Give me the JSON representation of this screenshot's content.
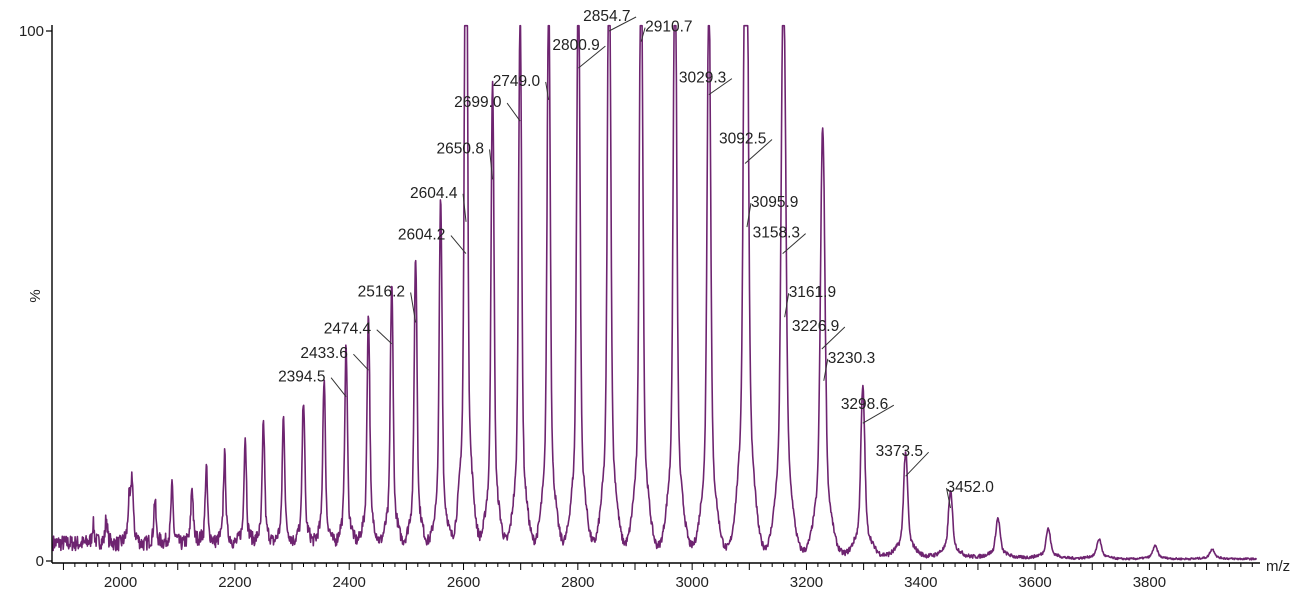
{
  "chart_data": {
    "type": "line",
    "title": "",
    "xlabel": "m/z",
    "ylabel": "%",
    "xlim": [
      1880,
      3990
    ],
    "ylim": [
      0,
      100
    ],
    "x_ticks": [
      2000,
      2200,
      2400,
      2600,
      2800,
      3000,
      3200,
      3400,
      3600,
      3800
    ],
    "y_ticks": [
      0,
      100
    ],
    "grid": false,
    "legend": "none",
    "line_color": "#6e2470",
    "peaks": [
      {
        "mz": 1952,
        "intensity": 3
      },
      {
        "mz": 1975,
        "intensity": 4
      },
      {
        "mz": 2015,
        "intensity": 6
      },
      {
        "mz": 2020,
        "intensity": 10
      },
      {
        "mz": 2060,
        "intensity": 7
      },
      {
        "mz": 2090,
        "intensity": 9
      },
      {
        "mz": 2125,
        "intensity": 9
      },
      {
        "mz": 2150,
        "intensity": 12
      },
      {
        "mz": 2182,
        "intensity": 14
      },
      {
        "mz": 2218,
        "intensity": 17
      },
      {
        "mz": 2250,
        "intensity": 19
      },
      {
        "mz": 2285,
        "intensity": 20
      },
      {
        "mz": 2320,
        "intensity": 23
      },
      {
        "mz": 2356,
        "intensity": 26
      },
      {
        "mz": 2394.5,
        "intensity": 31,
        "label": "2394.5"
      },
      {
        "mz": 2433.6,
        "intensity": 36,
        "label": "2433.6"
      },
      {
        "mz": 2474.4,
        "intensity": 41,
        "label": "2474.4"
      },
      {
        "mz": 2516.2,
        "intensity": 45,
        "label": "2516.2"
      },
      {
        "mz": 2560,
        "intensity": 54
      },
      {
        "mz": 2604.2,
        "intensity": 58,
        "label": "2604.2"
      },
      {
        "mz": 2604.4,
        "intensity": 64,
        "label": "2604.4"
      },
      {
        "mz": 2650.8,
        "intensity": 72,
        "label": "2650.8"
      },
      {
        "mz": 2699.0,
        "intensity": 83,
        "label": "2699.0"
      },
      {
        "mz": 2749.0,
        "intensity": 87,
        "label": "2749.0"
      },
      {
        "mz": 2800.9,
        "intensity": 93,
        "label": "2800.9"
      },
      {
        "mz": 2854.7,
        "intensity": 100,
        "label": "2854.7"
      },
      {
        "mz": 2910.7,
        "intensity": 98,
        "label": "2910.7"
      },
      {
        "mz": 2970,
        "intensity": 96
      },
      {
        "mz": 3029.3,
        "intensity": 88,
        "label": "3029.3"
      },
      {
        "mz": 3092.5,
        "intensity": 75,
        "label": "3092.5"
      },
      {
        "mz": 3095.9,
        "intensity": 63,
        "label": "3095.9"
      },
      {
        "mz": 3158.3,
        "intensity": 58,
        "label": "3158.3"
      },
      {
        "mz": 3161.9,
        "intensity": 46,
        "label": "3161.9"
      },
      {
        "mz": 3226.9,
        "intensity": 40,
        "label": "3226.9"
      },
      {
        "mz": 3230.3,
        "intensity": 34,
        "label": "3230.3"
      },
      {
        "mz": 3298.6,
        "intensity": 26,
        "label": "3298.6"
      },
      {
        "mz": 3373.5,
        "intensity": 16,
        "label": "3373.5"
      },
      {
        "mz": 3452.0,
        "intensity": 10,
        "label": "3452.0"
      },
      {
        "mz": 3535,
        "intensity": 6
      },
      {
        "mz": 3623,
        "intensity": 4.5
      },
      {
        "mz": 3712,
        "intensity": 3
      },
      {
        "mz": 3810,
        "intensity": 2
      },
      {
        "mz": 3910,
        "intensity": 1.5
      }
    ]
  }
}
